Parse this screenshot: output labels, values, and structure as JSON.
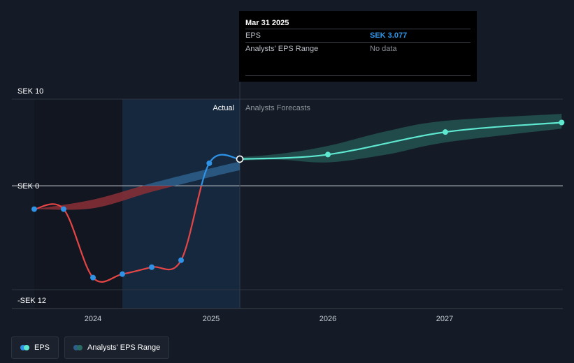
{
  "chart_data": {
    "type": "line",
    "y_axis": {
      "labels": [
        {
          "text": "SEK 10",
          "value": 10
        },
        {
          "text": "SEK 0",
          "value": 0
        },
        {
          "text": "-SEK 12",
          "value": -12
        }
      ],
      "range": [
        -12,
        10
      ]
    },
    "x_axis": {
      "ticks": [
        {
          "label": "2024",
          "t": 2024.0
        },
        {
          "label": "2025",
          "t": 2025.0
        },
        {
          "label": "2026",
          "t": 2026.0
        },
        {
          "label": "2027",
          "t": 2027.0
        }
      ],
      "range": [
        2023.0,
        2027.99
      ]
    },
    "divider_t": 2025.25,
    "shaded_regions": [
      {
        "from": 2023.5,
        "to": 2024.25,
        "fill": "#111620"
      },
      {
        "from": 2024.25,
        "to": 2025.25,
        "fill": "#15283e"
      }
    ],
    "section_labels": {
      "actual": "Actual",
      "forecast": "Analysts Forecasts"
    },
    "series": [
      {
        "name": "EPS",
        "kind": "actual",
        "color_negative": "#e64545",
        "color_positive": "#2e93e6",
        "points": [
          {
            "t": 2023.5,
            "v": -2.7
          },
          {
            "t": 2023.75,
            "v": -2.7
          },
          {
            "t": 2024.0,
            "v": -10.6
          },
          {
            "t": 2024.25,
            "v": -10.2
          },
          {
            "t": 2024.5,
            "v": -9.4
          },
          {
            "t": 2024.75,
            "v": -8.6
          },
          {
            "t": 2024.99,
            "v": 2.6
          },
          {
            "t": 2025.25,
            "v": 3.077
          }
        ],
        "markers": [
          2023.5,
          2023.75,
          2024.0,
          2024.25,
          2024.5,
          2024.75,
          2024.99
        ]
      },
      {
        "name": "EPS forecast",
        "kind": "forecast",
        "color": "#5ee8d0",
        "points": [
          {
            "t": 2025.25,
            "v": 3.077
          },
          {
            "t": 2026.0,
            "v": 3.6
          },
          {
            "t": 2027.0,
            "v": 6.2
          },
          {
            "t": 2027.99,
            "v": 7.3
          }
        ],
        "markers": [
          2026.0,
          2027.0,
          2027.99
        ]
      }
    ],
    "ranges": [
      {
        "name": "Analysts' EPS Range (past)",
        "color_negative": "#8a2f36",
        "color_positive": "#2d5f8c",
        "upper": [
          {
            "t": 2023.5,
            "v": -2.7
          },
          {
            "t": 2024.0,
            "v": -1.6
          },
          {
            "t": 2024.5,
            "v": 0.3
          },
          {
            "t": 2025.0,
            "v": 2.0
          },
          {
            "t": 2025.25,
            "v": 2.8
          }
        ],
        "lower": [
          {
            "t": 2023.5,
            "v": -2.7
          },
          {
            "t": 2024.0,
            "v": -2.6
          },
          {
            "t": 2024.5,
            "v": -0.7
          },
          {
            "t": 2025.0,
            "v": 1.0
          },
          {
            "t": 2025.25,
            "v": 1.8
          }
        ]
      },
      {
        "name": "Analysts' EPS Range (forecast)",
        "color": "#2a6b64",
        "upper": [
          {
            "t": 2025.25,
            "v": 3.3
          },
          {
            "t": 2025.6,
            "v": 3.7
          },
          {
            "t": 2026.0,
            "v": 4.6
          },
          {
            "t": 2026.5,
            "v": 6.3
          },
          {
            "t": 2027.0,
            "v": 7.5
          },
          {
            "t": 2027.99,
            "v": 8.3
          }
        ],
        "lower": [
          {
            "t": 2025.25,
            "v": 2.9
          },
          {
            "t": 2025.6,
            "v": 3.0
          },
          {
            "t": 2026.0,
            "v": 2.7
          },
          {
            "t": 2026.5,
            "v": 3.6
          },
          {
            "t": 2027.0,
            "v": 5.0
          },
          {
            "t": 2027.99,
            "v": 6.6
          }
        ]
      }
    ],
    "highlight": {
      "t": 2025.25,
      "v": 3.077
    }
  },
  "tooltip": {
    "date": "Mar 31 2025",
    "rows": [
      {
        "label": "EPS",
        "value": "SEK 3.077"
      },
      {
        "label": "Analysts' EPS Range",
        "value": "No data"
      }
    ]
  },
  "legend": [
    {
      "label": "EPS",
      "color_a": "#5ee8d0",
      "color_b": "#2e93e6"
    },
    {
      "label": "Analysts' EPS Range",
      "color_a": "#2a6b64",
      "color_b": "#2d5f8c"
    }
  ]
}
